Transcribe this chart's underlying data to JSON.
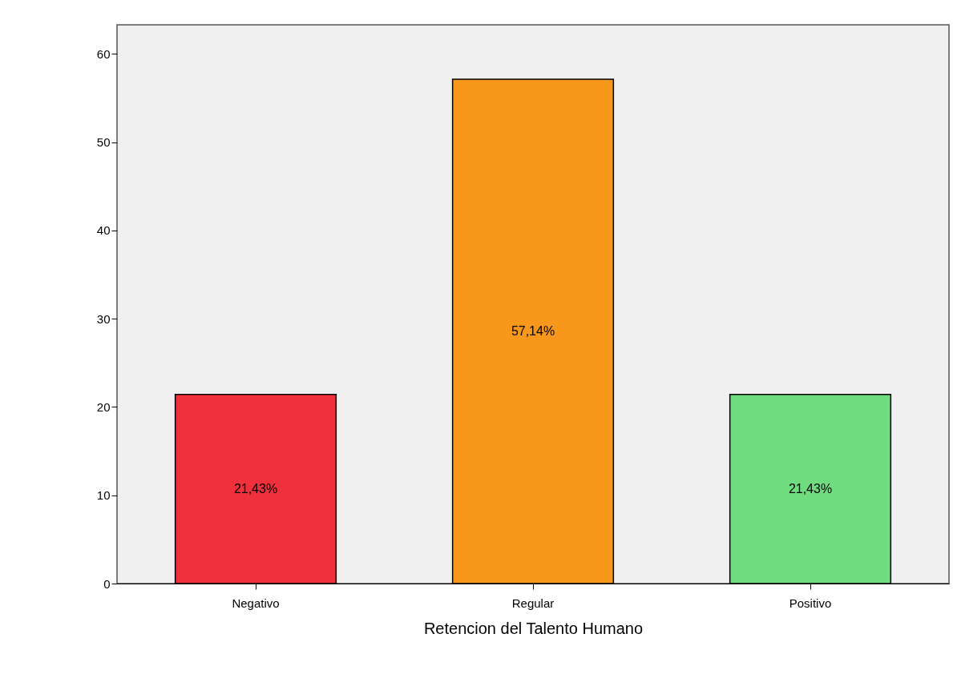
{
  "chart_data": {
    "type": "bar",
    "xlabel": "Retencion del Talento Humano",
    "categories": [
      "Negativo",
      "Regular",
      "Positivo"
    ],
    "values": [
      21.43,
      57.14,
      21.43
    ],
    "colors": [
      "#f0303a",
      "#f7981d",
      "#6fdc80"
    ],
    "value_labels": [
      "21,43%",
      "57,14%",
      "21,43%"
    ],
    "ylim": [
      0,
      63.3
    ],
    "yticks": [
      0,
      10,
      20,
      30,
      40,
      50,
      60
    ],
    "grid": false
  }
}
